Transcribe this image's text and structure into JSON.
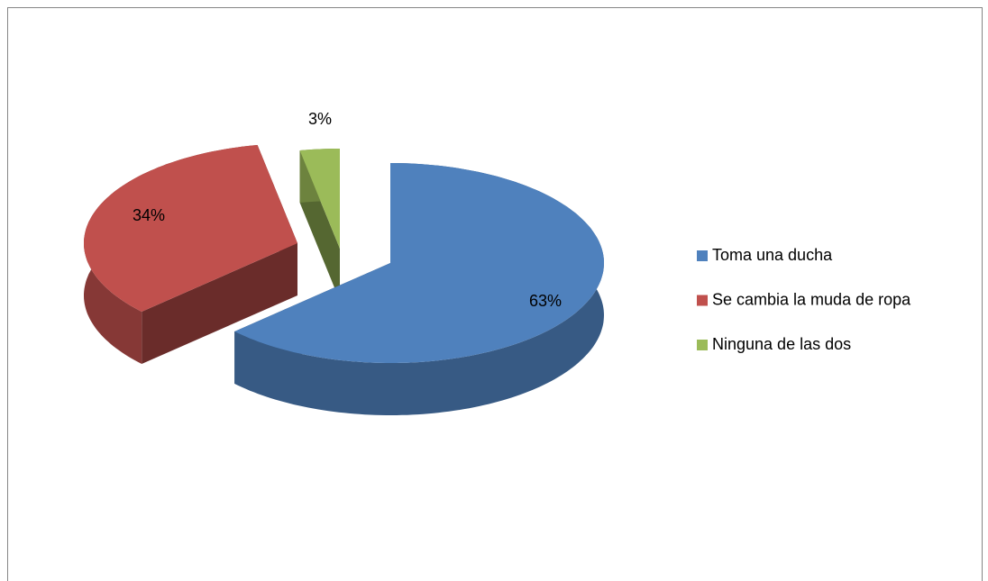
{
  "chart_data": {
    "type": "pie",
    "categories": [
      "Toma una ducha",
      "Se cambia la muda de ropa",
      "Ninguna de las dos"
    ],
    "values": [
      63,
      34,
      3
    ],
    "value_labels": [
      "63%",
      "34%",
      "3%"
    ],
    "colors": [
      "#4f81bd",
      "#c0504d",
      "#9bbb59"
    ],
    "legend": "right"
  }
}
